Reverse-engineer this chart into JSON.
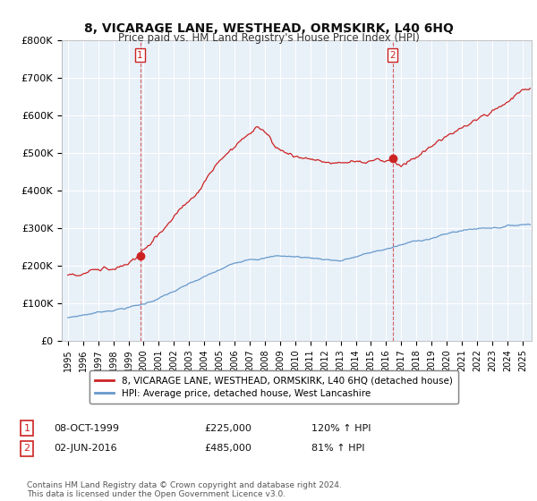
{
  "title": "8, VICARAGE LANE, WESTHEAD, ORMSKIRK, L40 6HQ",
  "subtitle": "Price paid vs. HM Land Registry's House Price Index (HPI)",
  "ylim": [
    0,
    800000
  ],
  "xlim_start": 1994.6,
  "xlim_end": 2025.6,
  "sale1_date": 1999.77,
  "sale1_price": 225000,
  "sale1_label": "08-OCT-1999",
  "sale1_hpi": "120% ↑ HPI",
  "sale2_date": 2016.42,
  "sale2_price": 485000,
  "sale2_label": "02-JUN-2016",
  "sale2_hpi": "81% ↑ HPI",
  "red_color": "#cc2222",
  "blue_color": "#6699cc",
  "legend_label_red": "8, VICARAGE LANE, WESTHEAD, ORMSKIRK, L40 6HQ (detached house)",
  "legend_label_blue": "HPI: Average price, detached house, West Lancashire",
  "footer": "Contains HM Land Registry data © Crown copyright and database right 2024.\nThis data is licensed under the Open Government Licence v3.0.",
  "yticks": [
    0,
    100000,
    200000,
    300000,
    400000,
    500000,
    600000,
    700000,
    800000
  ],
  "ytick_labels": [
    "£0",
    "£100K",
    "£200K",
    "£300K",
    "£400K",
    "£500K",
    "£600K",
    "£700K",
    "£800K"
  ],
  "xticks": [
    1995,
    1996,
    1997,
    1998,
    1999,
    2000,
    2001,
    2002,
    2003,
    2004,
    2005,
    2006,
    2007,
    2008,
    2009,
    2010,
    2011,
    2012,
    2013,
    2014,
    2015,
    2016,
    2017,
    2018,
    2019,
    2020,
    2021,
    2022,
    2023,
    2024,
    2025
  ],
  "bg_color": "#e8f0f8",
  "fig_bg": "#ffffff"
}
